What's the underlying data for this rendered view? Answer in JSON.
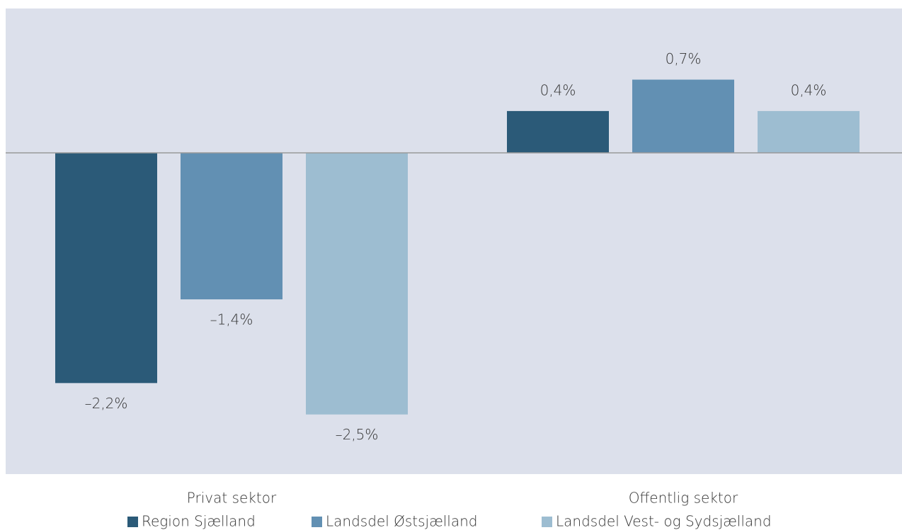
{
  "chart_data": {
    "type": "bar",
    "categories": [
      "Privat sektor",
      "Offentlig sektor"
    ],
    "series": [
      {
        "name": "Region Sjælland",
        "color": "#2b5a78",
        "values": [
          -2.2,
          0.4
        ],
        "value_labels": [
          "–2,2%",
          "0,4%"
        ]
      },
      {
        "name": "Landsdel Østsjælland",
        "color": "#6290b3",
        "values": [
          -1.4,
          0.7
        ],
        "value_labels": [
          "–1,4%",
          "0,7%"
        ]
      },
      {
        "name": "Landsdel Vest- og Sydsjælland",
        "color": "#9dbdd1",
        "values": [
          -2.5,
          0.4
        ],
        "value_labels": [
          "–2,5%",
          "0,4%"
        ]
      }
    ],
    "ylim": [
      -3.07,
      1.38
    ],
    "legend": "bottom"
  }
}
